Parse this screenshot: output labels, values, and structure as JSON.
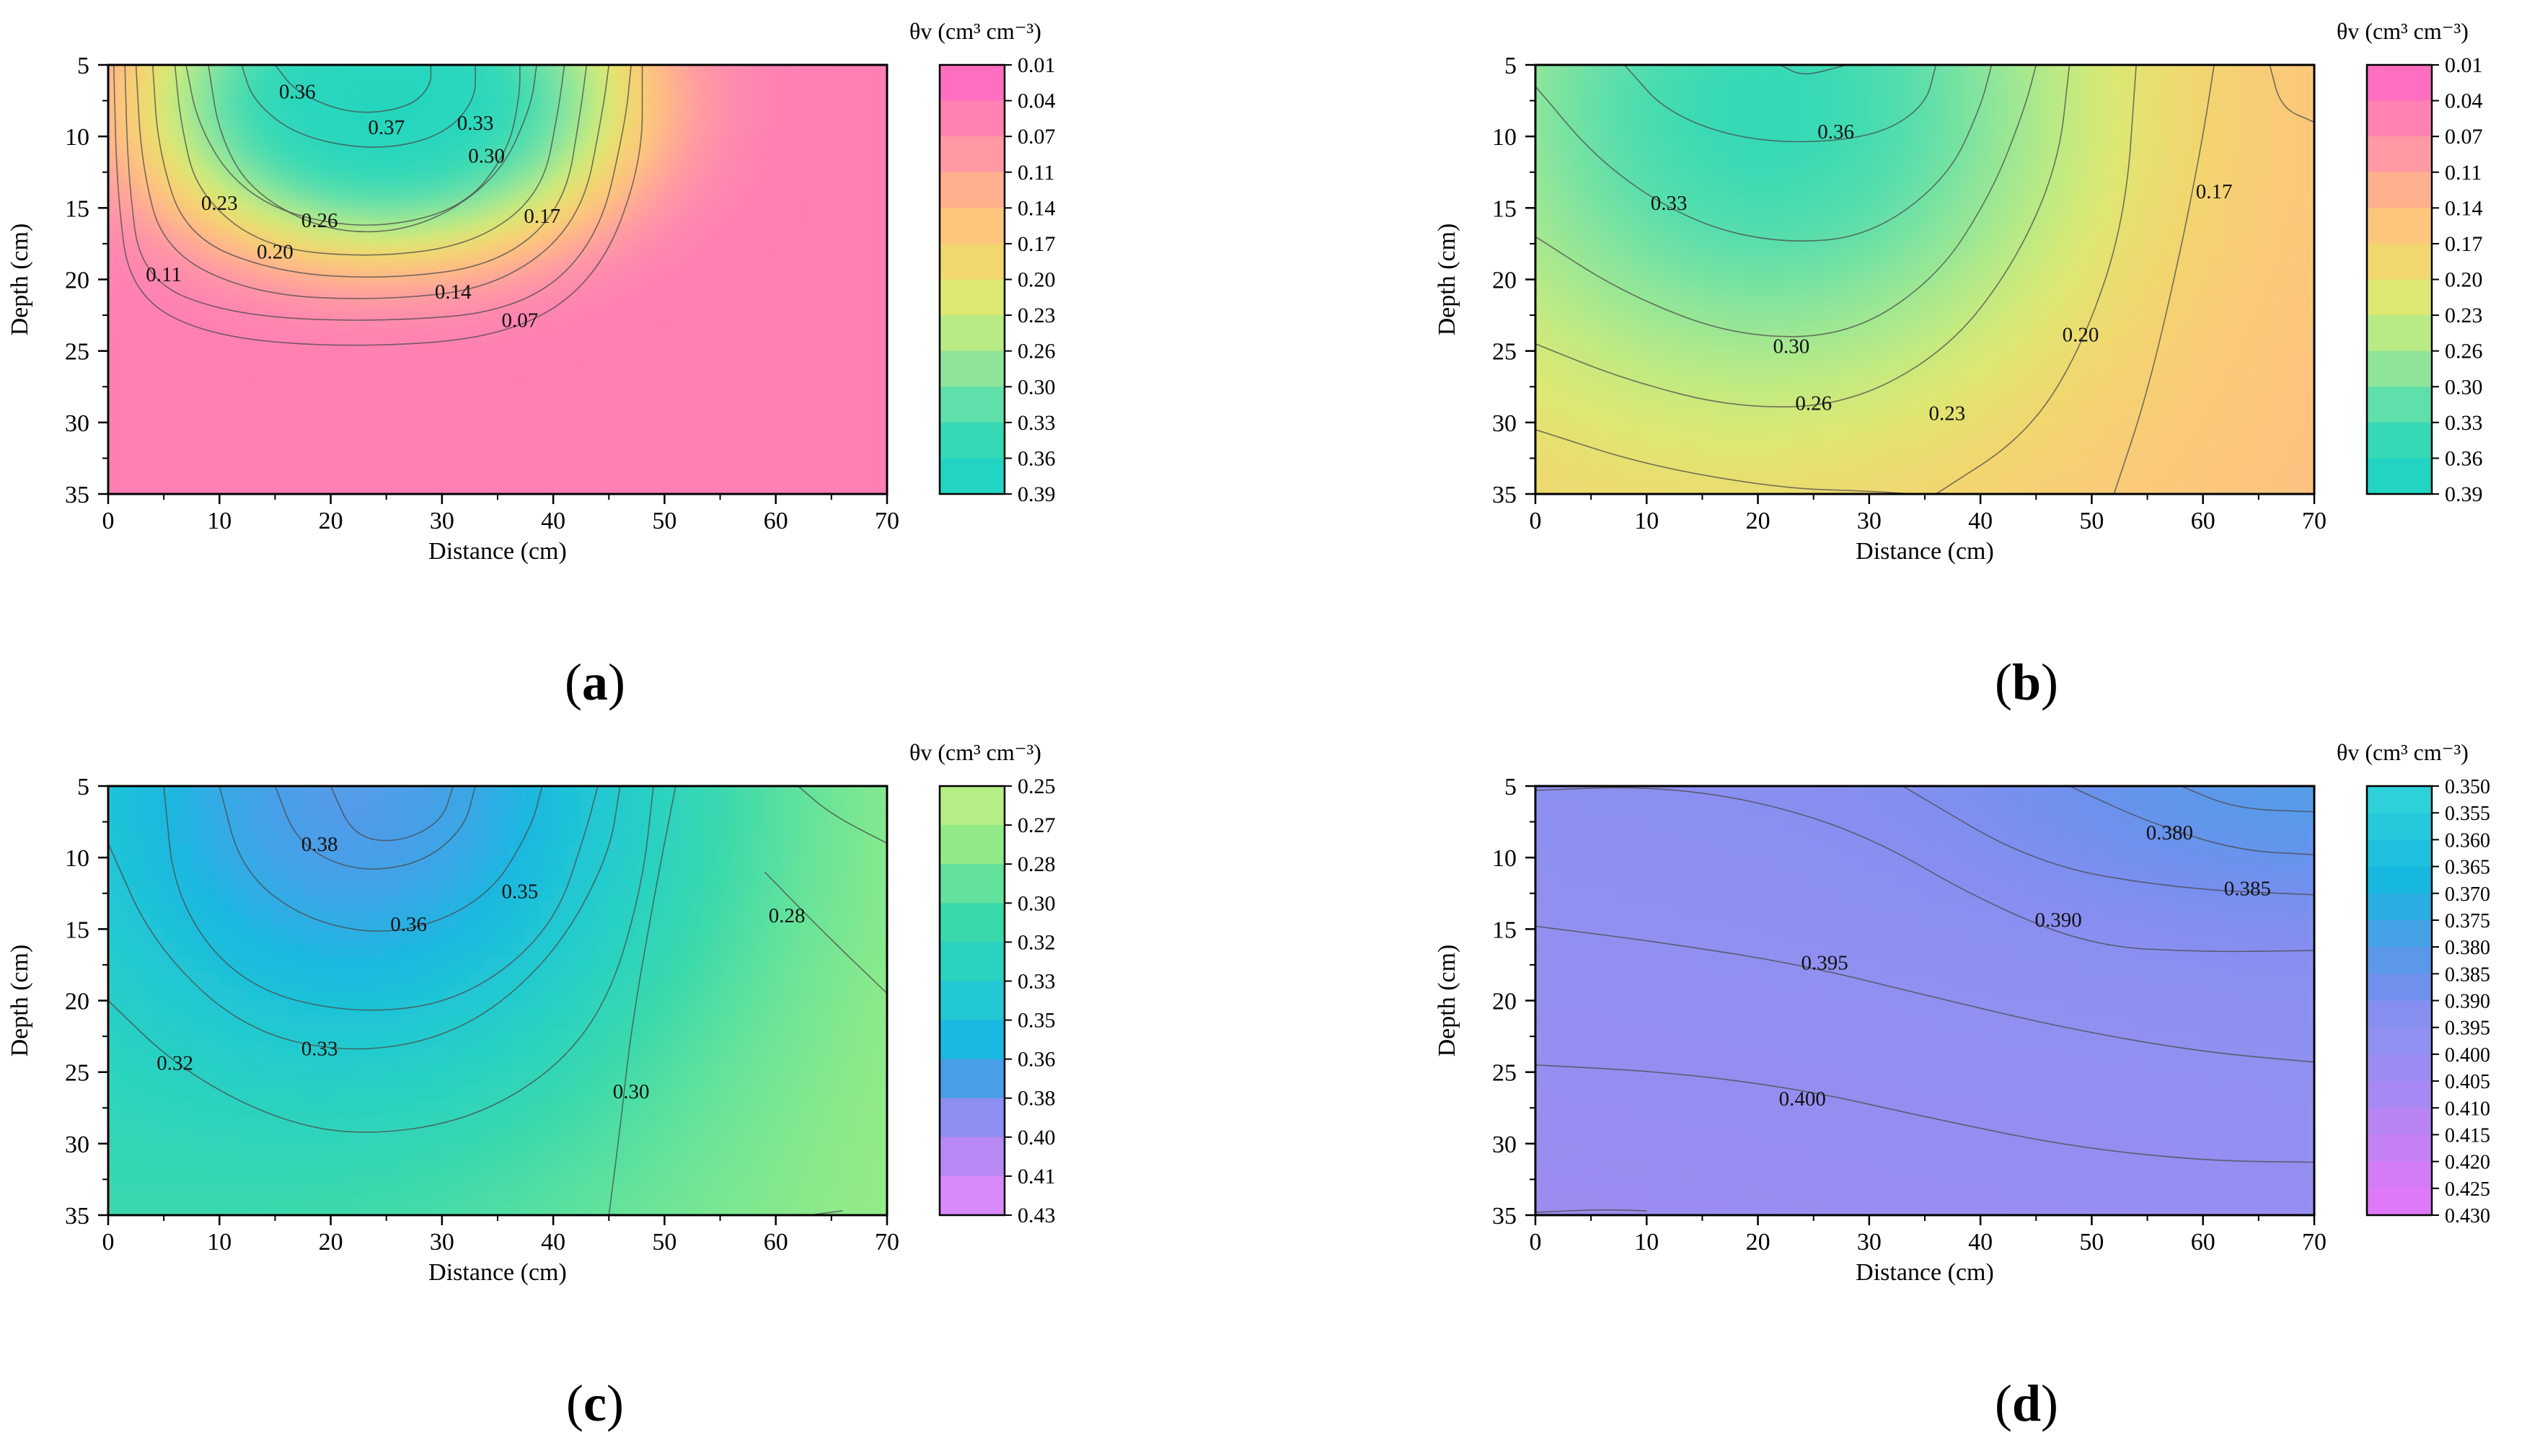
{
  "chart_data": [
    {
      "type": "heatmap",
      "panel_label": "a",
      "xlabel": "Distance (cm)",
      "ylabel": "Depth (cm)",
      "colorbar_title": "θv (cm³ cm⁻³)",
      "xlim": [
        0,
        70
      ],
      "ylim": [
        5,
        35
      ],
      "x_ticks": [
        "0",
        "10",
        "20",
        "30",
        "40",
        "50",
        "60",
        "70"
      ],
      "y_ticks": [
        "5",
        "10",
        "15",
        "20",
        "25",
        "30",
        "35"
      ],
      "colorbar_ticks": [
        "0.01",
        "0.04",
        "0.07",
        "0.11",
        "0.14",
        "0.17",
        "0.20",
        "0.23",
        "0.26",
        "0.30",
        "0.33",
        "0.36",
        "0.39"
      ],
      "colorbar_colors": [
        "#ff6ec0",
        "#ff82b2",
        "#ff99a4",
        "#ffb08e",
        "#fcc67c",
        "#f2d66e",
        "#dde872",
        "#b8ea86",
        "#8ee59a",
        "#5fdfaa",
        "#35d9b6",
        "#22d4c2"
      ],
      "source": {
        "x": 25,
        "y": 7.5
      },
      "field": {
        "model": "plume",
        "bg": 0.04,
        "amp": 0.34,
        "rx": 23,
        "ry": 11.3,
        "pw": 3.5,
        "dry_edge": 0
      },
      "contours": [
        {
          "label": "0.36",
          "lx": 17,
          "ly": 7
        },
        {
          "label": "0.37",
          "lx": 25,
          "ly": 9.5
        },
        {
          "label": "0.33",
          "lx": 33,
          "ly": 9.2
        },
        {
          "label": "0.30",
          "lx": 34,
          "ly": 11.5
        },
        {
          "label": "0.26",
          "lx": 19,
          "ly": 16
        },
        {
          "label": "0.23",
          "lx": 10,
          "ly": 14.8
        },
        {
          "label": "0.20",
          "lx": 15,
          "ly": 18.2
        },
        {
          "label": "0.17",
          "lx": 39,
          "ly": 15.7
        },
        {
          "label": "0.14",
          "lx": 31,
          "ly": 21
        },
        {
          "label": "0.11",
          "lx": 5,
          "ly": 19.8
        },
        {
          "label": "0.07",
          "lx": 37,
          "ly": 23
        }
      ]
    },
    {
      "type": "heatmap",
      "panel_label": "b",
      "xlabel": "Distance (cm)",
      "ylabel": "Depth (cm)",
      "colorbar_title": "θv (cm³ cm⁻³)",
      "xlim": [
        0,
        70
      ],
      "ylim": [
        5,
        35
      ],
      "x_ticks": [
        "0",
        "10",
        "20",
        "30",
        "40",
        "50",
        "60",
        "70"
      ],
      "y_ticks": [
        "5",
        "10",
        "15",
        "20",
        "25",
        "30",
        "35"
      ],
      "colorbar_ticks": [
        "0.01",
        "0.04",
        "0.07",
        "0.11",
        "0.14",
        "0.17",
        "0.20",
        "0.23",
        "0.26",
        "0.30",
        "0.33",
        "0.36",
        "0.39"
      ],
      "colorbar_colors": [
        "#ff6ec0",
        "#ff82b2",
        "#ff99a4",
        "#ffb08e",
        "#fcc67c",
        "#f2d66e",
        "#dde872",
        "#b8ea86",
        "#8ee59a",
        "#5fdfaa",
        "#35d9b6",
        "#22d4c2"
      ],
      "source": {
        "x": 22,
        "y": 8
      },
      "field": {
        "model": "plume",
        "bg": 0.17,
        "amp": 0.195,
        "rx": 30,
        "ry": 21,
        "pw": 2.2,
        "dry_edge": 0.03
      },
      "contours": [
        {
          "label": "0.36",
          "lx": 27,
          "ly": 9.8
        },
        {
          "label": "0.33",
          "lx": 12,
          "ly": 14.8
        },
        {
          "label": "0.30",
          "lx": 23,
          "ly": 24.8
        },
        {
          "label": "0.26",
          "lx": 25,
          "ly": 28.8
        },
        {
          "label": "0.23",
          "lx": 37,
          "ly": 29.5
        },
        {
          "label": "0.20",
          "lx": 49,
          "ly": 24
        },
        {
          "label": "0.17",
          "lx": 61,
          "ly": 14
        }
      ]
    },
    {
      "type": "heatmap",
      "panel_label": "c",
      "xlabel": "Distance (cm)",
      "ylabel": "Depth (cm)",
      "colorbar_title": "θv (cm³ cm⁻³)",
      "xlim": [
        0,
        70
      ],
      "ylim": [
        5,
        35
      ],
      "x_ticks": [
        "0",
        "10",
        "20",
        "30",
        "40",
        "50",
        "60",
        "70"
      ],
      "y_ticks": [
        "5",
        "10",
        "15",
        "20",
        "25",
        "30",
        "35"
      ],
      "colorbar_ticks": [
        "0.25",
        "0.27",
        "0.28",
        "0.30",
        "0.32",
        "0.33",
        "0.35",
        "0.36",
        "0.38",
        "0.40",
        "0.41",
        "0.43"
      ],
      "colorbar_colors": [
        "#b4ee84",
        "#90ea88",
        "#62e29c",
        "#3ad9ac",
        "#2ad2c0",
        "#22c8d2",
        "#1ab8e0",
        "#4a9ee8",
        "#8c8ff0",
        "#b888f4",
        "#d88af8"
      ],
      "source": {
        "x": 25,
        "y": 5.5
      },
      "field": {
        "model": "plume",
        "bg": 0.3,
        "amp": 0.09,
        "rx": 30,
        "ry": 22,
        "pw": 2.2,
        "dry_edge": 0.035
      },
      "contours": [
        {
          "label": "0.38",
          "lx": 19,
          "ly": 9.2
        },
        {
          "label": "0.36",
          "lx": 27,
          "ly": 14.8
        },
        {
          "label": "0.35",
          "lx": 37,
          "ly": 12.5
        },
        {
          "label": "0.33",
          "lx": 19,
          "ly": 23.5
        },
        {
          "label": "0.32",
          "lx": 6,
          "ly": 24.5
        },
        {
          "label": "0.30",
          "lx": 47,
          "ly": 26.5
        },
        {
          "label": "0.28",
          "lx": 61,
          "ly": 14.2
        }
      ]
    },
    {
      "type": "heatmap",
      "panel_label": "d",
      "xlabel": "Distance (cm)",
      "ylabel": "Depth (cm)",
      "colorbar_title": "θv (cm³ cm⁻³)",
      "xlim": [
        0,
        70
      ],
      "ylim": [
        5,
        35
      ],
      "x_ticks": [
        "0",
        "10",
        "20",
        "30",
        "40",
        "50",
        "60",
        "70"
      ],
      "y_ticks": [
        "5",
        "10",
        "15",
        "20",
        "25",
        "30",
        "35"
      ],
      "colorbar_ticks": [
        "0.350",
        "0.355",
        "0.360",
        "0.365",
        "0.370",
        "0.375",
        "0.380",
        "0.385",
        "0.390",
        "0.395",
        "0.400",
        "0.405",
        "0.410",
        "0.415",
        "0.420",
        "0.425",
        "0.430"
      ],
      "colorbar_colors": [
        "#2ed0da",
        "#26c8dc",
        "#1ec0de",
        "#16b8e0",
        "#2aaee2",
        "#46a2e6",
        "#5c98ea",
        "#7090ee",
        "#868ef0",
        "#9090f0",
        "#9a8cf0",
        "#a888f2",
        "#b884f4",
        "#c680f6",
        "#d47cf8",
        "#e078fa"
      ],
      "source": {
        "x": 70,
        "y": 5
      },
      "field": {
        "model": "gradient"
      },
      "contours": [
        {
          "label": "0.380",
          "lx": 57,
          "ly": 8.4
        },
        {
          "label": "0.385",
          "lx": 64,
          "ly": 12.3
        },
        {
          "label": "0.390",
          "lx": 47,
          "ly": 14.5
        },
        {
          "label": "0.395",
          "lx": 26,
          "ly": 17.5
        },
        {
          "label": "0.400",
          "lx": 24,
          "ly": 27
        }
      ]
    }
  ]
}
